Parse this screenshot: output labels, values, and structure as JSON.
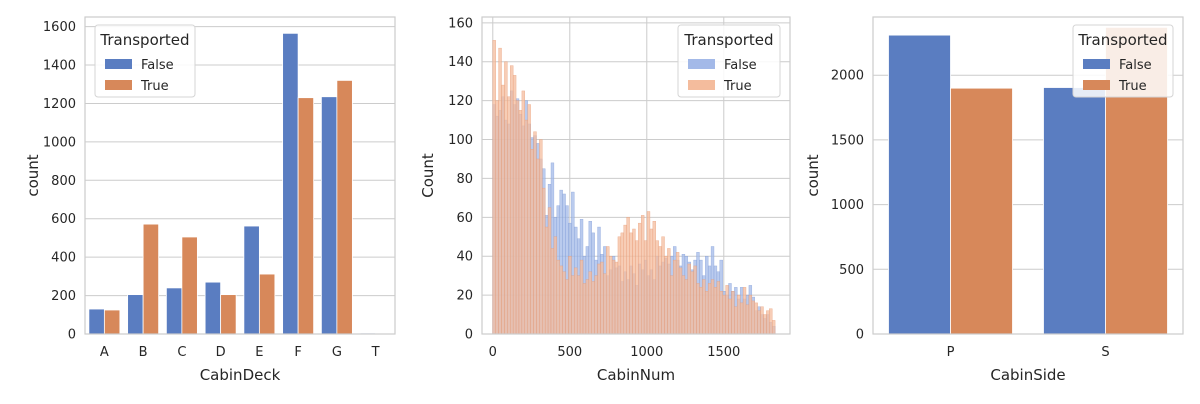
{
  "colors": {
    "false_solid": "#5a7dc1",
    "true_solid": "#d7885a",
    "false_hist": "#a3b9e8",
    "true_hist": "#f4bc9d",
    "grid": "#cccccc",
    "spine": "#cccccc"
  },
  "chart_data": [
    {
      "type": "bar",
      "xlabel": "CabinDeck",
      "ylabel": "count",
      "categories": [
        "A",
        "B",
        "C",
        "D",
        "E",
        "F",
        "G",
        "T"
      ],
      "ylim": [
        0,
        1650
      ],
      "yticks": [
        0,
        200,
        400,
        600,
        800,
        1000,
        1200,
        1400,
        1600
      ],
      "grid": true,
      "legend": {
        "title": "Transported",
        "placement": "upper-left",
        "entries": [
          "False",
          "True"
        ]
      },
      "series": [
        {
          "name": "False",
          "values": [
            130,
            205,
            240,
            270,
            562,
            1565,
            1235,
            5
          ]
        },
        {
          "name": "True",
          "values": [
            125,
            572,
            505,
            205,
            312,
            1230,
            1320,
            2
          ]
        }
      ]
    },
    {
      "type": "histogram",
      "xlabel": "CabinNum",
      "ylabel": "Count",
      "xlim": [
        -70,
        1930
      ],
      "xticks": [
        0,
        500,
        1000,
        1500
      ],
      "ylim": [
        0,
        163
      ],
      "yticks": [
        0,
        20,
        40,
        60,
        80,
        100,
        120,
        140,
        160
      ],
      "grid": true,
      "legend": {
        "title": "Transported",
        "placement": "upper-right",
        "entries": [
          "False",
          "True"
        ]
      },
      "bin_start": 0,
      "bin_width": 18.9,
      "series": [
        {
          "name": "False",
          "values": [
            118,
            112,
            115,
            122,
            110,
            108,
            125,
            118,
            121,
            113,
            107,
            120,
            108,
            101,
            102,
            98,
            90,
            85,
            61,
            77,
            88,
            60,
            66,
            74,
            72,
            66,
            57,
            73,
            55,
            49,
            59,
            40,
            45,
            58,
            52,
            38,
            55,
            41,
            45,
            30,
            33,
            40,
            34,
            35,
            27,
            32,
            28,
            35,
            31,
            25,
            36,
            33,
            38,
            30,
            33,
            28,
            40,
            35,
            37,
            39,
            36,
            40,
            45,
            38,
            35,
            41,
            40,
            37,
            33,
            38,
            42,
            38,
            30,
            40,
            35,
            45,
            35,
            32,
            38,
            22,
            20,
            26,
            22,
            24,
            18,
            24,
            18,
            20,
            25,
            19,
            12,
            14,
            10,
            8,
            10,
            6,
            4
          ]
        },
        {
          "name": "True",
          "values": [
            151,
            120,
            147,
            128,
            140,
            122,
            138,
            133,
            120,
            115,
            125,
            110,
            118,
            95,
            104,
            90,
            100,
            75,
            55,
            65,
            44,
            50,
            38,
            35,
            32,
            28,
            40,
            30,
            34,
            30,
            38,
            26,
            28,
            32,
            27,
            30,
            36,
            37,
            31,
            45,
            40,
            38,
            37,
            50,
            52,
            56,
            60,
            52,
            54,
            48,
            57,
            61,
            48,
            63,
            54,
            58,
            48,
            45,
            50,
            40,
            44,
            30,
            38,
            42,
            34,
            30,
            28,
            36,
            32,
            35,
            26,
            24,
            28,
            22,
            26,
            28,
            24,
            27,
            22,
            20,
            25,
            18,
            22,
            14,
            20,
            16,
            24,
            15,
            20,
            17,
            16,
            12,
            14,
            10,
            12,
            13,
            7
          ]
        }
      ]
    },
    {
      "type": "bar",
      "xlabel": "CabinSide",
      "ylabel": "count",
      "categories": [
        "P",
        "S"
      ],
      "ylim": [
        0,
        2450
      ],
      "yticks": [
        0,
        500,
        1000,
        1500,
        2000
      ],
      "grid": true,
      "legend": {
        "title": "Transported",
        "placement": "upper-right",
        "entries": [
          "False",
          "True"
        ]
      },
      "series": [
        {
          "name": "False",
          "values": [
            2310,
            1905
          ]
        },
        {
          "name": "True",
          "values": [
            1900,
            2370
          ]
        }
      ]
    }
  ]
}
